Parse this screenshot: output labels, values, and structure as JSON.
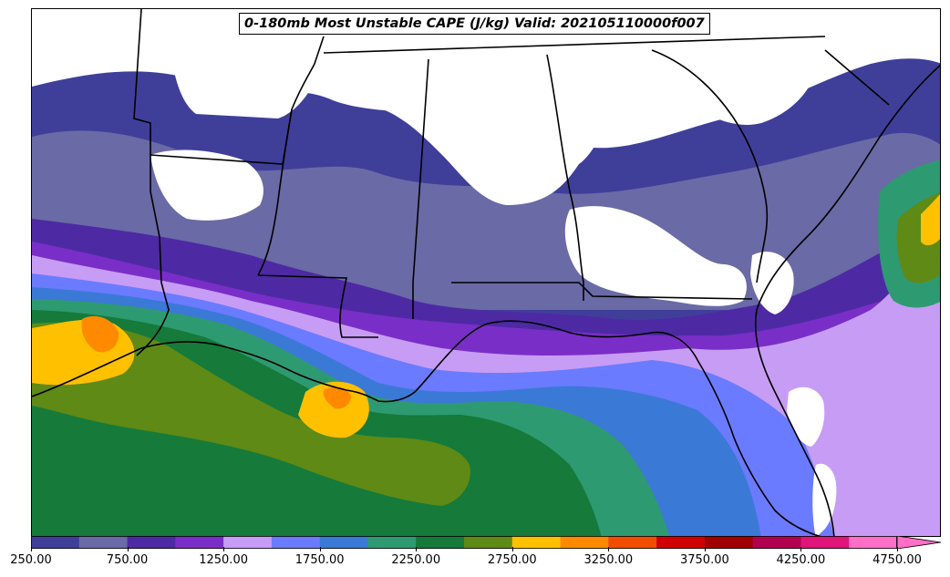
{
  "title": "0-180mb Most Unstable CAPE (J/kg) Valid: 202105110000f007",
  "colorbar": {
    "tick_labels": [
      "250.00",
      "750.00",
      "1250.00",
      "1750.00",
      "2250.00",
      "2750.00",
      "3250.00",
      "3750.00",
      "4250.00",
      "4750.00"
    ],
    "colors": [
      "#3f3f9a",
      "#6a6aa6",
      "#4d2aa3",
      "#7a2ec8",
      "#c79cf5",
      "#6a7bff",
      "#3b79d6",
      "#2e9a72",
      "#157a3a",
      "#5f8a16",
      "#ffc000",
      "#ff8a00",
      "#f04d00",
      "#d00000",
      "#a00000",
      "#b0004f",
      "#e0157a",
      "#ff6fc8"
    ],
    "extend": "max"
  },
  "legend_levels_start": 250,
  "legend_level_step": 250
}
